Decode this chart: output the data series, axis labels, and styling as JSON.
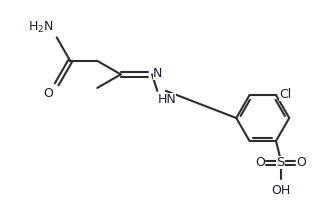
{
  "bg_color": "#ffffff",
  "line_color": "#2d2d2d",
  "atom_color": "#1a1a2e",
  "bond_lw": 1.5,
  "font_size": 9.0,
  "fig_width": 3.33,
  "fig_height": 2.24,
  "dpi": 100,
  "xlim": [
    -0.5,
    10.5
  ],
  "ylim": [
    -0.2,
    7.2
  ]
}
